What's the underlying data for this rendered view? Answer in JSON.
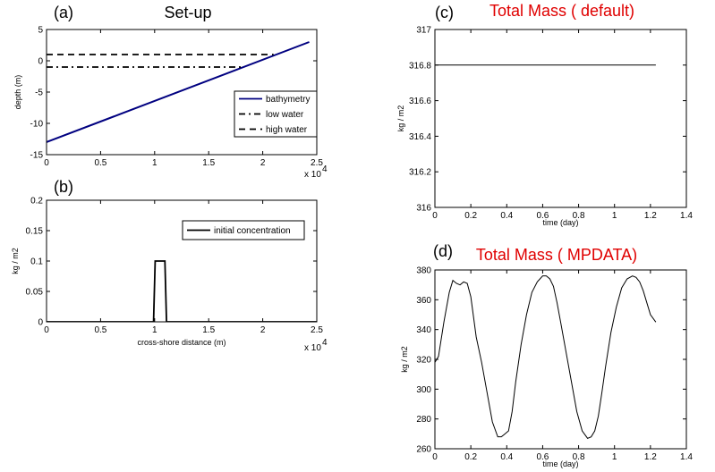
{
  "chart_data": [
    {
      "id": "a",
      "type": "line",
      "panel_label": "(a)",
      "title": "Set-up",
      "title_color": "#000000",
      "xlabel": "",
      "ylabel": "depth (m)",
      "xlim": [
        0,
        25000
      ],
      "ylim": [
        -15,
        5
      ],
      "xticks": [
        0,
        5000,
        10000,
        15000,
        20000,
        25000
      ],
      "xtick_labels": [
        "0",
        "0.5",
        "1",
        "1.5",
        "2",
        "2.5"
      ],
      "yticks": [
        -15,
        -10,
        -5,
        0,
        5
      ],
      "ytick_labels": [
        "-15",
        "-10",
        "-5",
        "0",
        "5"
      ],
      "x_exponent_label": "x 10",
      "x_exponent_power": "4",
      "legend_position": "bottom-right",
      "series": [
        {
          "name": "bathymetry",
          "color": "#000080",
          "dash": "solid",
          "x": [
            0,
            24300
          ],
          "y": [
            -13,
            3
          ]
        },
        {
          "name": "low water",
          "color": "#000000",
          "dash": "dashdot",
          "x": [
            0,
            18000
          ],
          "y": [
            -1,
            -1
          ]
        },
        {
          "name": "high water",
          "color": "#000000",
          "dash": "dashed",
          "x": [
            0,
            21000
          ],
          "y": [
            1,
            1
          ]
        }
      ]
    },
    {
      "id": "b",
      "type": "line",
      "panel_label": "(b)",
      "title": "",
      "xlabel": "cross-shore distance (m)",
      "ylabel": "kg / m2",
      "xlim": [
        0,
        25000
      ],
      "ylim": [
        0,
        0.2
      ],
      "xticks": [
        0,
        5000,
        10000,
        15000,
        20000,
        25000
      ],
      "xtick_labels": [
        "0",
        "0.5",
        "1",
        "1.5",
        "2",
        "2.5"
      ],
      "yticks": [
        0,
        0.05,
        0.1,
        0.15,
        0.2
      ],
      "ytick_labels": [
        "0",
        "0.05",
        "0.1",
        "0.15",
        "0.2"
      ],
      "x_exponent_label": "x 10",
      "x_exponent_power": "4",
      "legend_position": "top-right",
      "series": [
        {
          "name": "initial concentration",
          "color": "#000000",
          "dash": "solid",
          "x": [
            0,
            9900,
            10050,
            10950,
            11100,
            25000
          ],
          "y": [
            0,
            0,
            0.1,
            0.1,
            0,
            0
          ]
        }
      ]
    },
    {
      "id": "c",
      "type": "line",
      "panel_label": "(c)",
      "title": "Total Mass ( default)",
      "title_color": "#e00000",
      "xlabel": "time (day)",
      "ylabel": "kg / m2",
      "xlim": [
        0,
        1.4
      ],
      "ylim": [
        316,
        317
      ],
      "xticks": [
        0,
        0.2,
        0.4,
        0.6,
        0.8,
        1,
        1.2,
        1.4
      ],
      "xtick_labels": [
        "0",
        "0.2",
        "0.4",
        "0.6",
        "0.8",
        "1",
        "1.2",
        "1.4"
      ],
      "yticks": [
        316,
        316.2,
        316.4,
        316.6,
        316.8,
        317
      ],
      "ytick_labels": [
        "316",
        "316.2",
        "316.4",
        "316.6",
        "316.8",
        "317"
      ],
      "series": [
        {
          "color": "#000000",
          "dash": "solid",
          "x": [
            0,
            1.23
          ],
          "y": [
            316.8,
            316.8
          ]
        }
      ]
    },
    {
      "id": "d",
      "type": "line",
      "panel_label": "(d)",
      "title": "Total Mass ( MPDATA)",
      "title_color": "#e00000",
      "xlabel": "time (day)",
      "ylabel": "kg / m2",
      "xlim": [
        0,
        1.4
      ],
      "ylim": [
        260,
        380
      ],
      "xticks": [
        0,
        0.2,
        0.4,
        0.6,
        0.8,
        1,
        1.2,
        1.4
      ],
      "xtick_labels": [
        "0",
        "0.2",
        "0.4",
        "0.6",
        "0.8",
        "1",
        "1.2",
        "1.4"
      ],
      "yticks": [
        260,
        280,
        300,
        320,
        340,
        360,
        380
      ],
      "ytick_labels": [
        "260",
        "280",
        "300",
        "320",
        "340",
        "360",
        "380"
      ],
      "series": [
        {
          "color": "#000000",
          "dash": "solid",
          "x": [
            0,
            0.02,
            0.05,
            0.08,
            0.1,
            0.12,
            0.14,
            0.16,
            0.18,
            0.2,
            0.23,
            0.26,
            0.29,
            0.32,
            0.35,
            0.37,
            0.39,
            0.41,
            0.43,
            0.45,
            0.48,
            0.51,
            0.54,
            0.57,
            0.6,
            0.62,
            0.64,
            0.66,
            0.68,
            0.7,
            0.73,
            0.76,
            0.79,
            0.82,
            0.85,
            0.87,
            0.89,
            0.91,
            0.93,
            0.95,
            0.98,
            1.01,
            1.04,
            1.07,
            1.1,
            1.12,
            1.14,
            1.16,
            1.18,
            1.2,
            1.23
          ],
          "y": [
            318,
            322,
            345,
            365,
            373,
            371,
            370,
            372,
            371,
            362,
            335,
            318,
            298,
            278,
            268,
            268,
            270,
            272,
            285,
            305,
            330,
            350,
            365,
            372,
            376,
            376,
            374,
            369,
            358,
            345,
            325,
            305,
            285,
            272,
            267,
            268,
            272,
            282,
            298,
            315,
            338,
            355,
            368,
            374,
            376,
            375,
            372,
            366,
            358,
            350,
            345
          ]
        }
      ]
    }
  ]
}
